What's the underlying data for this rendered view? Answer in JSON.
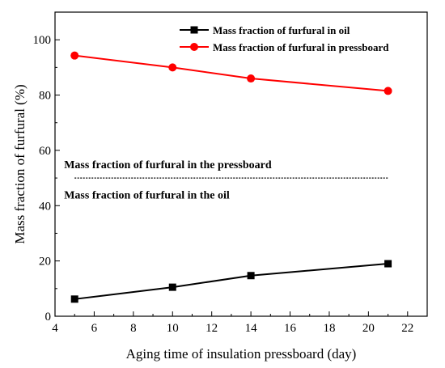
{
  "chart_data": {
    "type": "line",
    "xlabel": "Aging time of insulation pressboard (day)",
    "ylabel": "Mass fraction of furfural (%)",
    "xlim": [
      4,
      23
    ],
    "ylim": [
      0,
      110
    ],
    "xticks": [
      4,
      6,
      8,
      10,
      12,
      14,
      16,
      18,
      20,
      22
    ],
    "yticks": [
      0,
      20,
      40,
      60,
      80,
      100
    ],
    "grid": false,
    "legend_position": "top-right",
    "series": [
      {
        "name": "Mass fraction of furfural in oil",
        "color": "#000000",
        "marker": "square",
        "x": [
          5,
          10,
          14,
          21
        ],
        "y": [
          6.2,
          10.5,
          14.7,
          19.0
        ]
      },
      {
        "name": "Mass fraction of furfural in pressboard",
        "color": "#ff0000",
        "marker": "circle",
        "x": [
          5,
          10,
          14,
          21
        ],
        "y": [
          94.3,
          90.0,
          86.0,
          81.5
        ]
      }
    ],
    "reference_line": {
      "y": 50,
      "x_range": [
        5,
        21
      ],
      "style": "dotted",
      "color": "#000000"
    },
    "annotations": [
      {
        "text": "Mass fraction of furfural in the pressboard",
        "x": 5,
        "y": 55
      },
      {
        "text": "Mass fraction of furfural in the oil",
        "x": 5,
        "y": 44
      }
    ]
  }
}
